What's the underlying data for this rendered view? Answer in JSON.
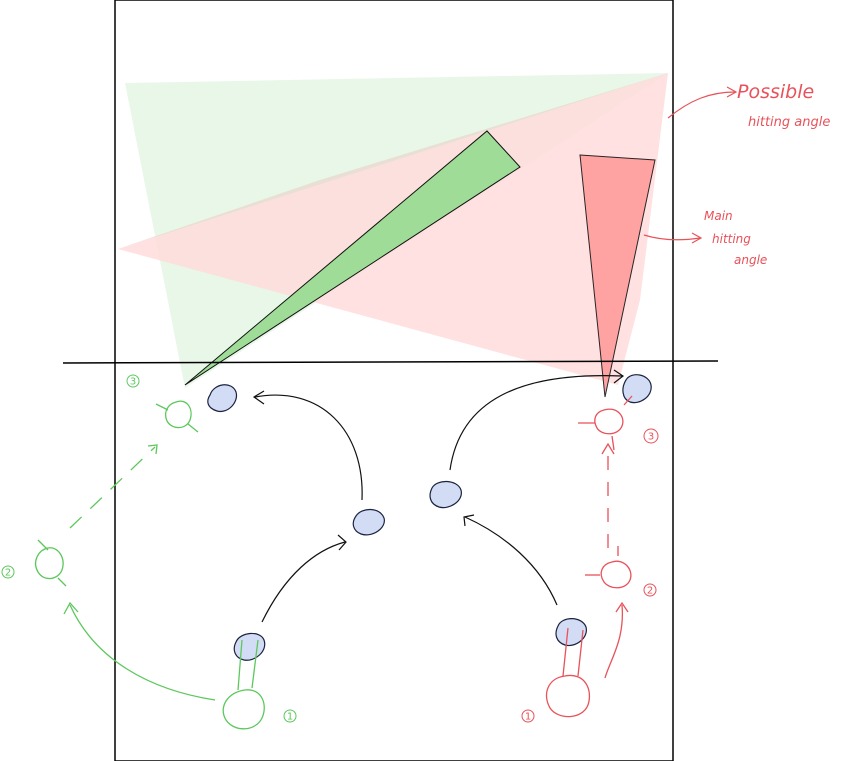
{
  "colors": {
    "court_line": "#000000",
    "green_zone": "#e7f6e7",
    "green_main": "#9fdc97",
    "red_zone": "#ffd9da",
    "red_main": "#ff9c9c",
    "overlap_zone": "#e9dad0",
    "green_player": "#5cc85c",
    "red_player": "#e8525a",
    "ball_fill": "#d2dcf4",
    "ball_stroke": "#1a2340",
    "arrow": "#111111"
  },
  "labels": {
    "possible_angle_line1": "Possible",
    "possible_angle_line2": "hitting angle",
    "main_angle_line1": "Main",
    "main_angle_line2": "hitting",
    "main_angle_line3": "angle"
  },
  "green_player_steps": [
    "1",
    "2",
    "3"
  ],
  "red_player_steps": [
    "1",
    "2",
    "3"
  ]
}
